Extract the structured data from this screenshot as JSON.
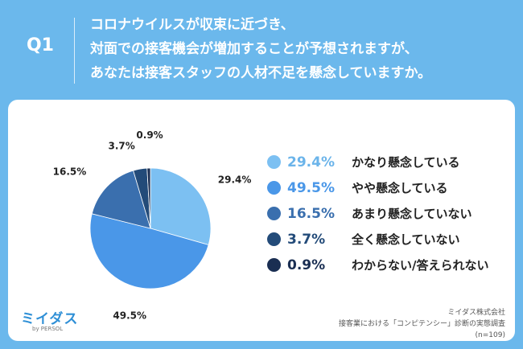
{
  "header": {
    "label": "Q1",
    "lines": [
      "コロナウイルスが収束に近づき、",
      "対面での接客機会が増加することが予想されますが、",
      "あなたは接客スタッフの人材不足を懸念していますか。"
    ]
  },
  "chart_data": {
    "type": "pie",
    "categories": [
      "かなり懸念している",
      "やや懸念している",
      "あまり懸念していない",
      "全く懸念していない",
      "わからない/答えられない"
    ],
    "values": [
      29.4,
      49.5,
      16.5,
      3.7,
      0.9
    ],
    "value_labels": [
      "29.4%",
      "49.5%",
      "16.5%",
      "3.7%",
      "0.9%"
    ],
    "colors": [
      "#7cc0f2",
      "#4a97e8",
      "#3a6fae",
      "#234b79",
      "#1a2e52"
    ],
    "legend_placement": "right",
    "start_angle_deg": 0,
    "direction": "clockwise"
  },
  "logo": {
    "name": "ミイダス",
    "sub": "by PERSOL"
  },
  "source": {
    "lines": [
      "ミイダス株式会社",
      "接客業における「コンピテンシー」診断の実態調査",
      "(n=109)"
    ]
  }
}
